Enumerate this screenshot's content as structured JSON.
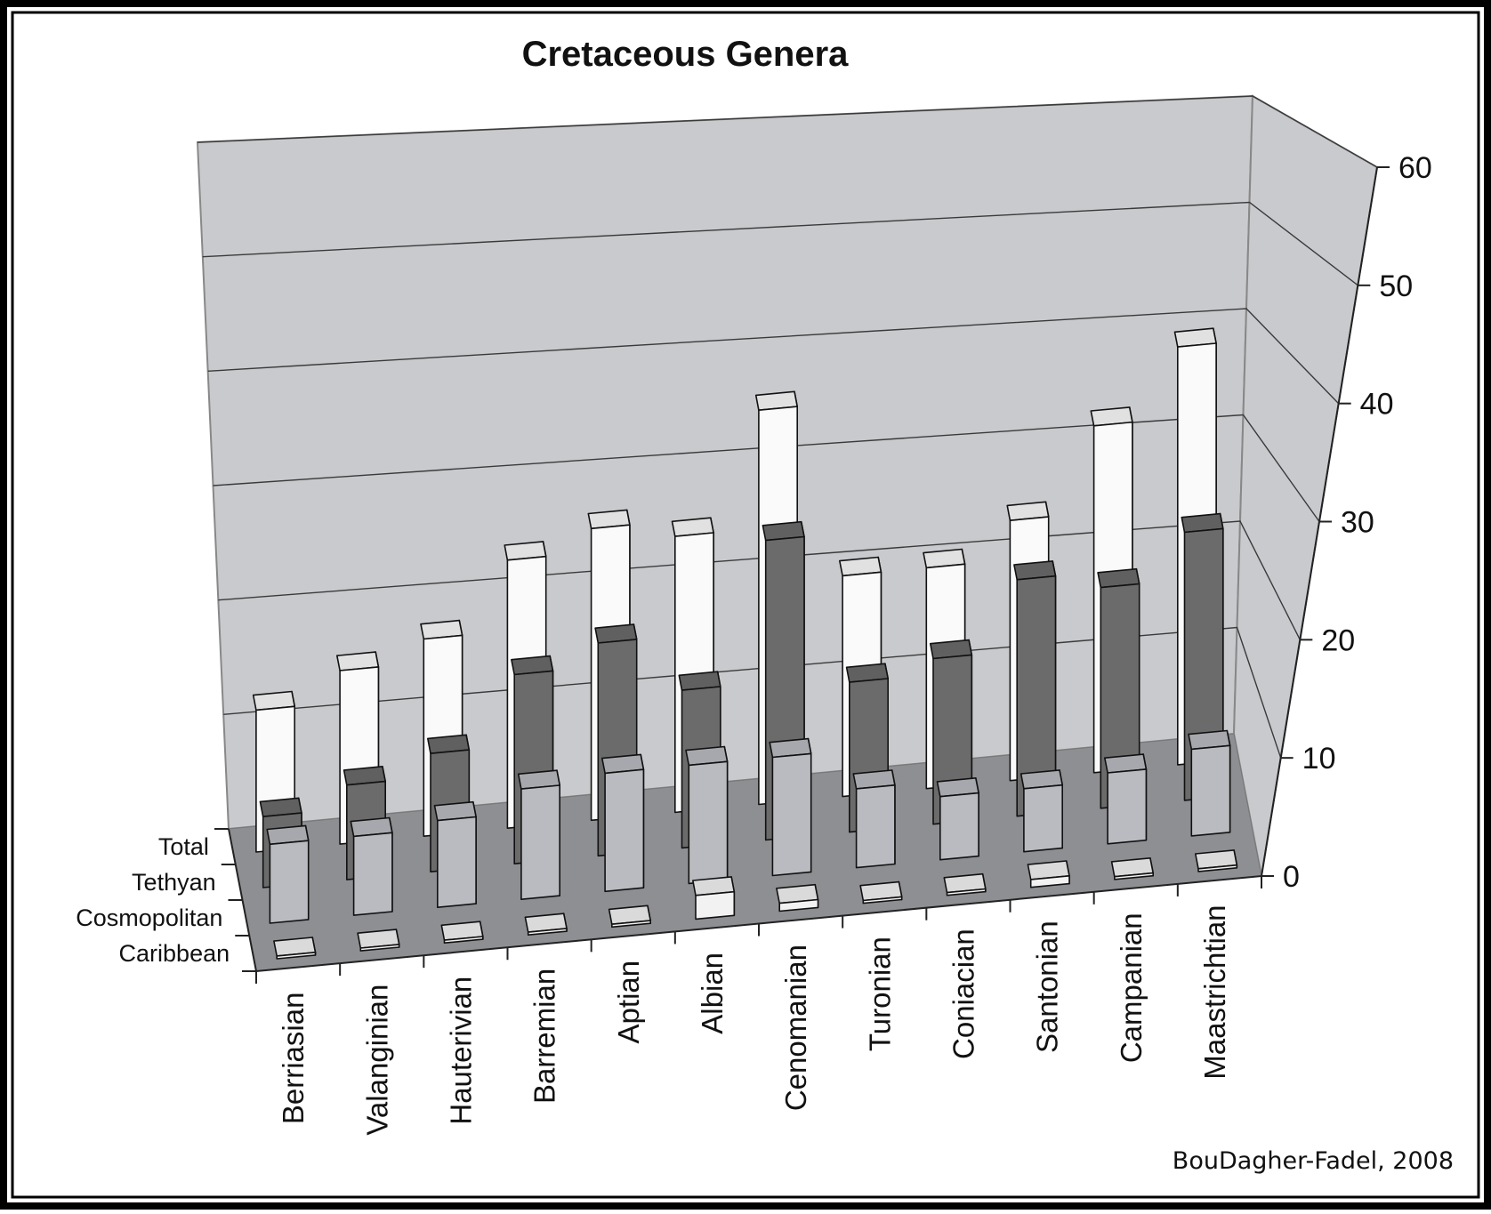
{
  "chart_data": {
    "type": "bar",
    "title": "Cretaceous Genera",
    "categories": [
      "Berriasian",
      "Valanginian",
      "Hauterivian",
      "Barremian",
      "Aptian",
      "Albian",
      "Cenomanian",
      "Turonian",
      "Coniacian",
      "Santonian",
      "Campanian",
      "Maastrichtian"
    ],
    "series": [
      {
        "name": "Total",
        "values": [
          18,
          22,
          25,
          34,
          37,
          35,
          50,
          28,
          28,
          33,
          44,
          53
        ]
      },
      {
        "name": "Tethyan",
        "values": [
          9,
          12,
          15,
          24,
          27,
          20,
          38,
          19,
          21,
          30,
          28,
          34
        ]
      },
      {
        "name": "Cosmopolitan",
        "values": [
          10,
          10,
          11,
          14,
          15,
          15,
          15,
          10,
          8,
          8,
          9,
          11
        ]
      },
      {
        "name": "Caribbean",
        "values": [
          0,
          0,
          0,
          0,
          0,
          3,
          1,
          0,
          0,
          1,
          0,
          0
        ]
      }
    ],
    "series_colors": {
      "Total": "#fafafa",
      "Tethyan": "#6b6b6b",
      "Cosmopolitan": "#b9bbc0",
      "Caribbean": "#f2f2f2"
    },
    "ylim": [
      0,
      60
    ],
    "yticks": [
      "0",
      "10",
      "20",
      "30",
      "40",
      "50",
      "60"
    ],
    "grid": true,
    "projection": "3d"
  },
  "credit": "BouDagher-Fadel, 2008"
}
